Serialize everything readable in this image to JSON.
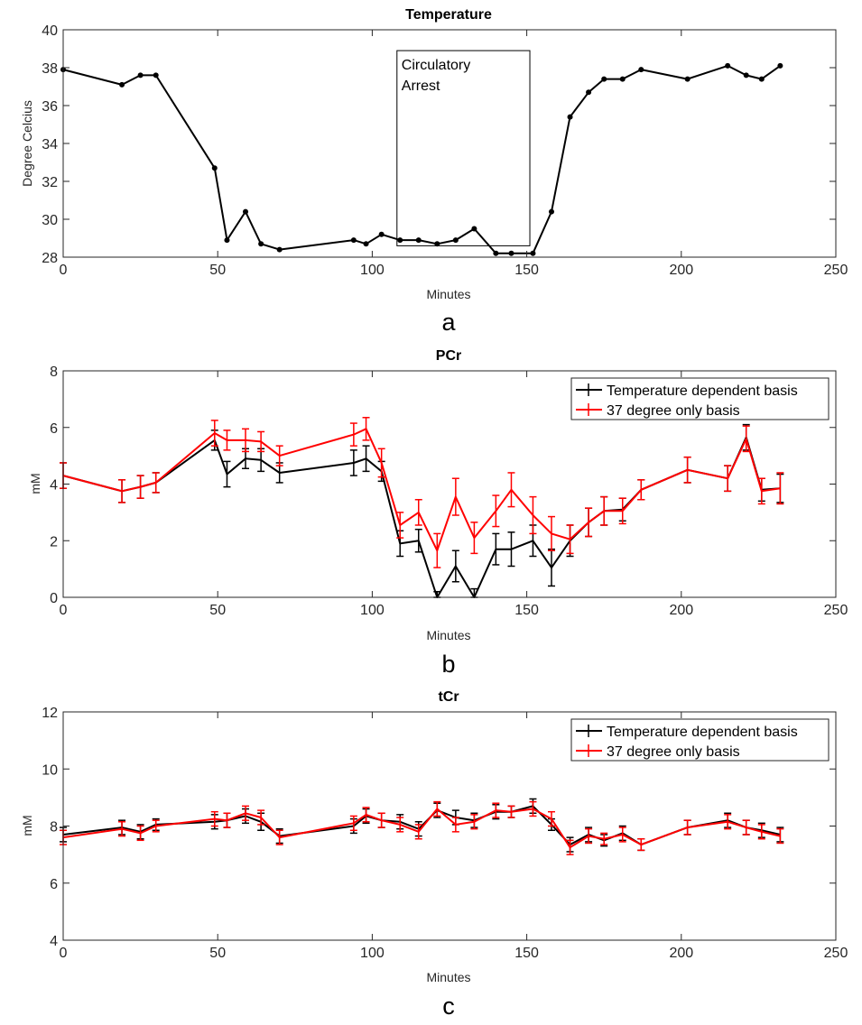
{
  "panels": [
    {
      "id": "a",
      "sublabel": "a",
      "chart_data": {
        "type": "line",
        "title": "Temperature",
        "xlabel": "Minutes",
        "ylabel": "Degree Celcius",
        "xlim": [
          0,
          250
        ],
        "ylim": [
          28,
          40
        ],
        "xticks": [
          0,
          50,
          100,
          150,
          200,
          250
        ],
        "yticks": [
          28,
          30,
          32,
          34,
          36,
          38,
          40
        ],
        "series": [
          {
            "name": "Temperature",
            "color": "#000000",
            "marker": "dot",
            "x": [
              0,
              19,
              25,
              30,
              49,
              53,
              59,
              64,
              70,
              94,
              98,
              103,
              109,
              115,
              121,
              127,
              133,
              140,
              145,
              152,
              158,
              164,
              170,
              175,
              181,
              187,
              202,
              215,
              221,
              226,
              232
            ],
            "y": [
              37.9,
              37.1,
              37.6,
              37.6,
              32.7,
              28.9,
              30.4,
              28.7,
              28.4,
              28.9,
              28.7,
              29.2,
              28.9,
              28.9,
              28.7,
              28.9,
              29.5,
              28.2,
              28.2,
              28.2,
              30.4,
              35.4,
              36.7,
              37.4,
              37.4,
              37.9,
              37.4,
              38.1,
              37.6,
              37.4,
              38.1
            ]
          }
        ],
        "annotations": [
          {
            "text_lines": [
              "Circulatory",
              "Arrest"
            ],
            "x0": 108,
            "x1": 151,
            "y0": 28.6,
            "y1": 38.9
          }
        ]
      }
    },
    {
      "id": "b",
      "sublabel": "b",
      "chart_data": {
        "type": "line",
        "title": "PCr",
        "xlabel": "Minutes",
        "ylabel": "mM",
        "xlim": [
          0,
          250
        ],
        "ylim": [
          0,
          8
        ],
        "xticks": [
          0,
          50,
          100,
          150,
          200,
          250
        ],
        "yticks": [
          0,
          2,
          4,
          6,
          8
        ],
        "legend_position": "top-right",
        "series": [
          {
            "name": "Temperature dependent basis",
            "color": "#000000",
            "error_bars": true,
            "x": [
              0,
              19,
              25,
              30,
              49,
              53,
              59,
              64,
              70,
              94,
              98,
              103,
              109,
              115,
              121,
              127,
              133,
              140,
              145,
              152,
              158,
              164,
              170,
              175,
              181,
              187,
              202,
              215,
              221,
              226,
              232
            ],
            "y": [
              4.3,
              3.75,
              3.9,
              4.05,
              5.55,
              4.35,
              4.9,
              4.85,
              4.4,
              4.75,
              4.9,
              4.45,
              1.9,
              2.0,
              0.0,
              1.1,
              0.0,
              1.7,
              1.7,
              2.0,
              1.05,
              2.0,
              2.65,
              3.05,
              3.1,
              3.8,
              4.5,
              4.2,
              5.65,
              3.8,
              3.85
            ],
            "err": [
              0.45,
              0.4,
              0.4,
              0.35,
              0.35,
              0.45,
              0.35,
              0.4,
              0.35,
              0.45,
              0.45,
              0.35,
              0.45,
              0.4,
              0.2,
              0.55,
              0.3,
              0.55,
              0.6,
              0.55,
              0.65,
              0.55,
              0.5,
              0.5,
              0.4,
              0.35,
              0.45,
              0.45,
              0.45,
              0.4,
              0.5
            ]
          },
          {
            "name": "37 degree only basis",
            "color": "#ff0000",
            "error_bars": true,
            "x": [
              0,
              19,
              25,
              30,
              49,
              53,
              59,
              64,
              70,
              94,
              98,
              103,
              109,
              115,
              121,
              127,
              133,
              140,
              145,
              152,
              158,
              164,
              170,
              175,
              181,
              187,
              202,
              215,
              221,
              226,
              232
            ],
            "y": [
              4.3,
              3.75,
              3.9,
              4.05,
              5.8,
              5.55,
              5.55,
              5.5,
              5.0,
              5.75,
              5.95,
              4.75,
              2.55,
              3.0,
              1.65,
              3.55,
              2.1,
              3.05,
              3.8,
              2.9,
              2.25,
              2.05,
              2.65,
              3.05,
              3.05,
              3.8,
              4.5,
              4.2,
              5.6,
              3.75,
              3.85
            ],
            "err": [
              0.45,
              0.4,
              0.4,
              0.35,
              0.45,
              0.35,
              0.4,
              0.35,
              0.35,
              0.4,
              0.4,
              0.5,
              0.45,
              0.45,
              0.6,
              0.65,
              0.55,
              0.55,
              0.6,
              0.65,
              0.6,
              0.5,
              0.5,
              0.5,
              0.45,
              0.35,
              0.45,
              0.45,
              0.45,
              0.45,
              0.55
            ]
          }
        ]
      }
    },
    {
      "id": "c",
      "sublabel": "c",
      "chart_data": {
        "type": "line",
        "title": "tCr",
        "xlabel": "Minutes",
        "ylabel": "mM",
        "xlim": [
          0,
          250
        ],
        "ylim": [
          4,
          12
        ],
        "xticks": [
          0,
          50,
          100,
          150,
          200,
          250
        ],
        "yticks": [
          4,
          6,
          8,
          10,
          12
        ],
        "legend_position": "top-right",
        "series": [
          {
            "name": "Temperature dependent basis",
            "color": "#000000",
            "error_bars": true,
            "x": [
              0,
              19,
              25,
              30,
              49,
              53,
              59,
              64,
              70,
              94,
              98,
              103,
              109,
              115,
              121,
              127,
              133,
              140,
              145,
              152,
              158,
              164,
              170,
              175,
              181,
              187,
              202,
              215,
              221,
              226,
              232
            ],
            "y": [
              7.7,
              7.95,
              7.8,
              8.05,
              8.15,
              8.2,
              8.35,
              8.15,
              7.65,
              8.0,
              8.35,
              8.2,
              8.15,
              7.9,
              8.55,
              8.3,
              8.2,
              8.5,
              8.5,
              8.7,
              8.05,
              7.35,
              7.7,
              7.5,
              7.75,
              7.35,
              7.95,
              8.2,
              7.95,
              7.85,
              7.7
            ],
            "err": [
              0.25,
              0.25,
              0.25,
              0.2,
              0.25,
              0.25,
              0.25,
              0.3,
              0.25,
              0.25,
              0.25,
              0.25,
              0.25,
              0.25,
              0.25,
              0.25,
              0.25,
              0.25,
              0.2,
              0.25,
              0.2,
              0.25,
              0.25,
              0.2,
              0.25,
              0.2,
              0.25,
              0.25,
              0.25,
              0.25,
              0.25
            ]
          },
          {
            "name": "37 degree only basis",
            "color": "#ff0000",
            "error_bars": true,
            "x": [
              0,
              19,
              25,
              30,
              49,
              53,
              59,
              64,
              70,
              94,
              98,
              103,
              109,
              115,
              121,
              127,
              133,
              140,
              145,
              152,
              158,
              164,
              170,
              175,
              181,
              187,
              202,
              215,
              221,
              226,
              232
            ],
            "y": [
              7.6,
              7.9,
              7.75,
              8.0,
              8.25,
              8.2,
              8.45,
              8.3,
              7.6,
              8.1,
              8.4,
              8.2,
              8.05,
              7.8,
              8.6,
              8.05,
              8.15,
              8.55,
              8.5,
              8.6,
              8.25,
              7.25,
              7.65,
              7.55,
              7.7,
              7.35,
              7.95,
              8.15,
              7.95,
              7.8,
              7.65
            ],
            "err": [
              0.25,
              0.25,
              0.25,
              0.2,
              0.25,
              0.25,
              0.25,
              0.25,
              0.25,
              0.25,
              0.25,
              0.25,
              0.25,
              0.25,
              0.25,
              0.25,
              0.25,
              0.25,
              0.2,
              0.25,
              0.25,
              0.25,
              0.25,
              0.2,
              0.25,
              0.2,
              0.25,
              0.25,
              0.25,
              0.25,
              0.25
            ]
          }
        ]
      }
    }
  ]
}
